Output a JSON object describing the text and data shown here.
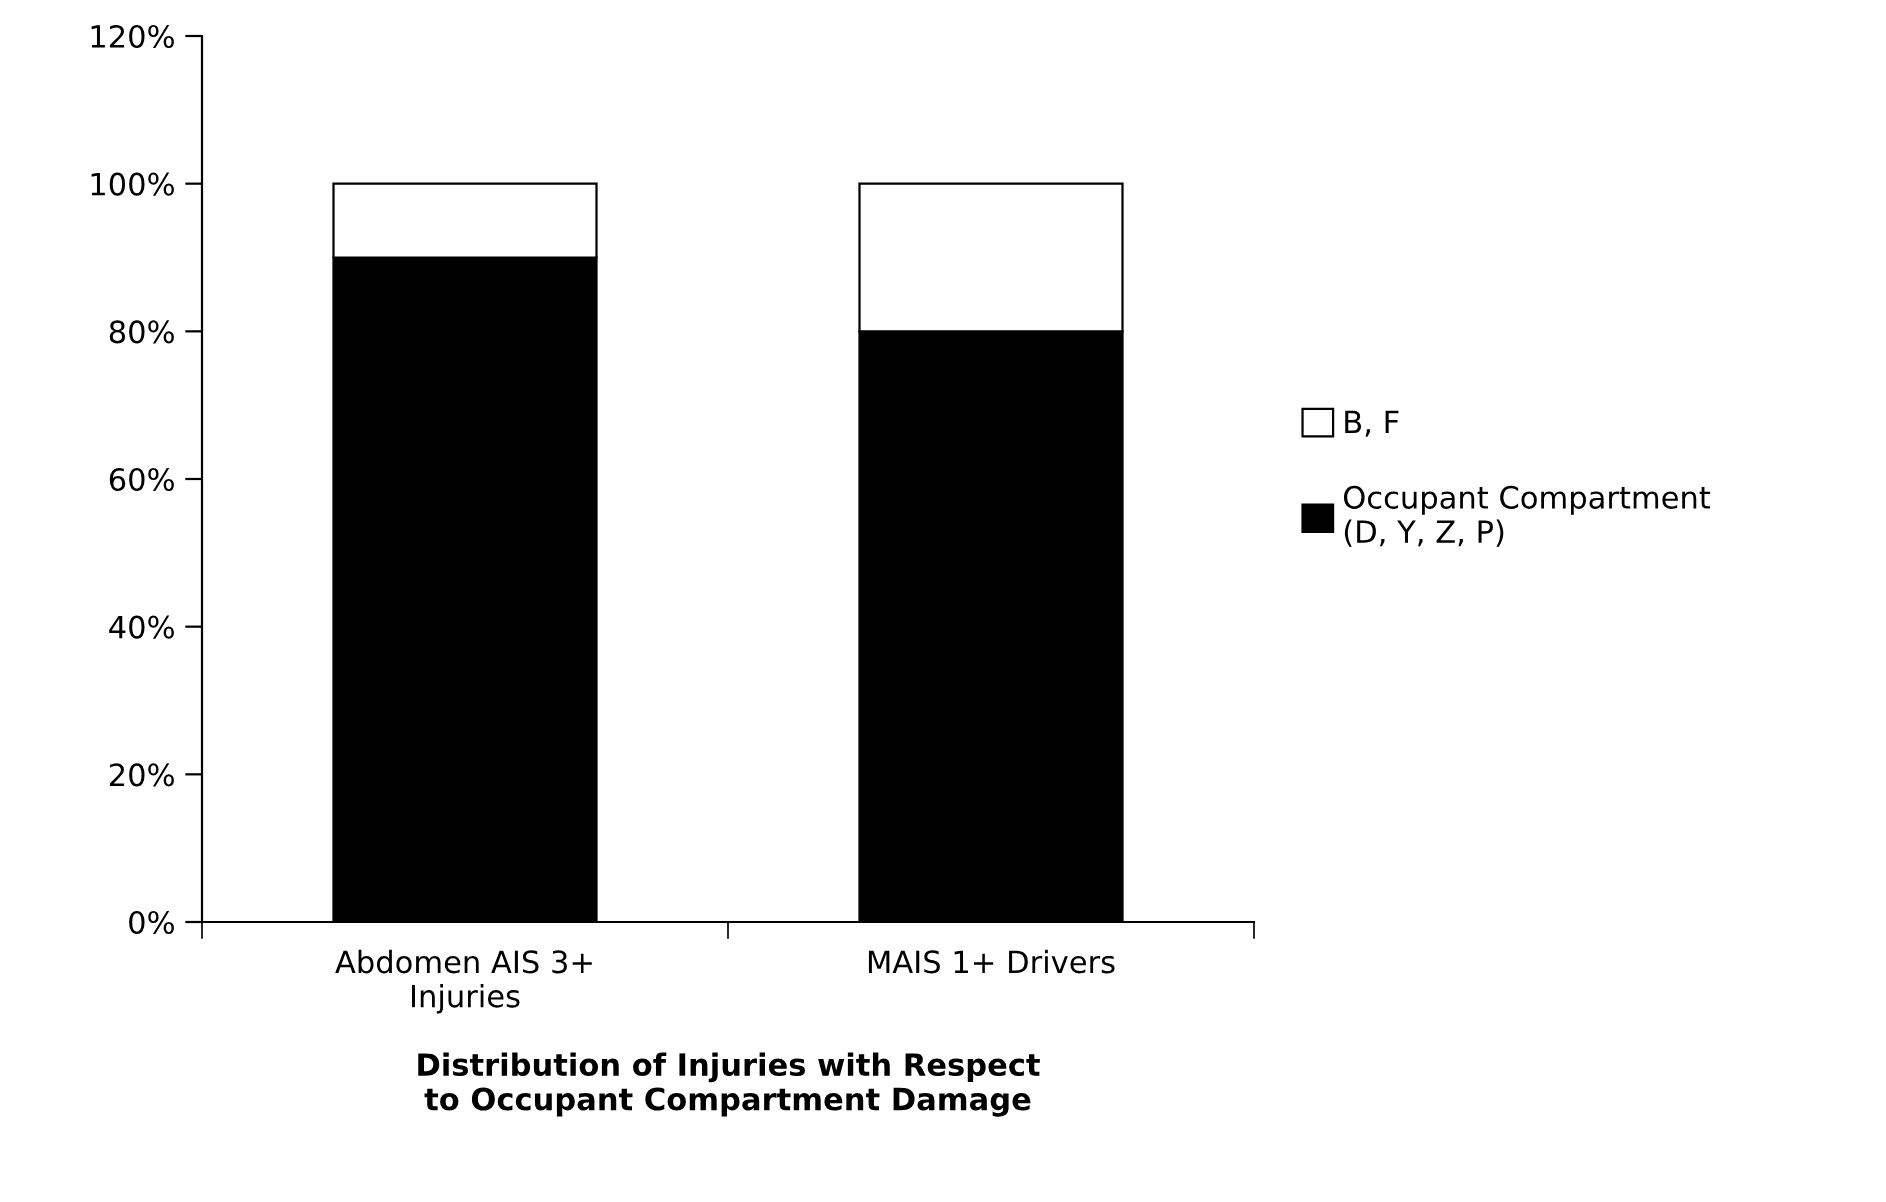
{
  "chart_data": {
    "type": "bar",
    "stacked": true,
    "xlabel": "Distribution of Injuries with Respect\nto Occupant Compartment Damage",
    "categories": [
      "Abdomen AIS 3+\nInjuries",
      "MAIS 1+ Drivers"
    ],
    "series": [
      {
        "name": "Occupant Compartment\n(D, Y, Z, P)",
        "color": "#000000",
        "values": [
          90,
          80
        ]
      },
      {
        "name": "B, F",
        "color": "#ffffff",
        "values": [
          10,
          20
        ]
      }
    ],
    "ylim": [
      0,
      120
    ],
    "yticks": [
      {
        "value": 0,
        "label": "0%"
      },
      {
        "value": 20,
        "label": "20%"
      },
      {
        "value": 40,
        "label": "40%"
      },
      {
        "value": 60,
        "label": "60%"
      },
      {
        "value": 80,
        "label": "80%"
      },
      {
        "value": 100,
        "label": "100%"
      },
      {
        "value": 120,
        "label": "120%"
      }
    ],
    "grid": false,
    "legend": "right"
  }
}
